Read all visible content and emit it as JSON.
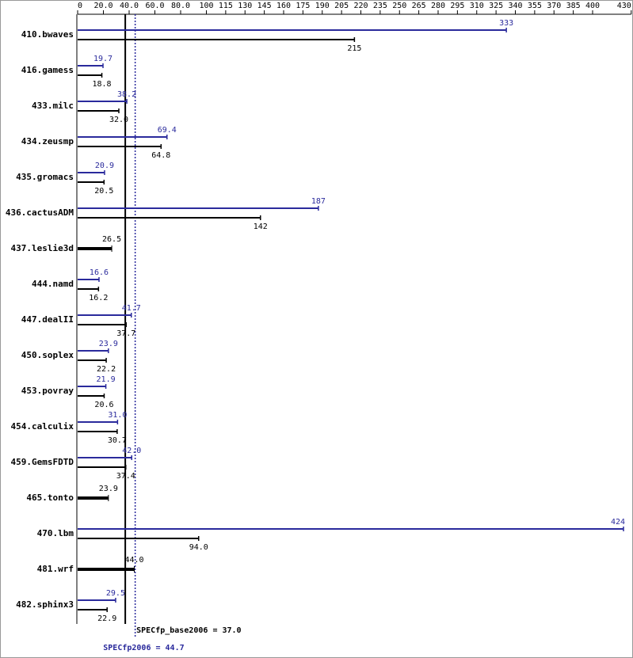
{
  "chart_data": {
    "type": "hbar-pair",
    "categories": [
      "410.bwaves",
      "416.gamess",
      "433.milc",
      "434.zeusmp",
      "435.gromacs",
      "436.cactusADM",
      "437.leslie3d",
      "444.namd",
      "447.dealII",
      "450.soplex",
      "453.povray",
      "454.calculix",
      "459.GemsFDTD",
      "465.tonto",
      "470.lbm",
      "481.wrf",
      "482.sphinx3"
    ],
    "series": [
      {
        "role": "peak",
        "color": "#2a2a9c",
        "values": [
          333,
          19.7,
          38.2,
          69.4,
          20.9,
          187,
          null,
          16.6,
          41.7,
          23.9,
          21.9,
          31.0,
          42.0,
          null,
          424,
          null,
          29.5
        ],
        "value_labels": [
          "333",
          "19.7",
          "38.2",
          "69.4",
          "20.9",
          "187",
          null,
          "16.6",
          "41.7",
          "23.9",
          "21.9",
          "31.0",
          "42.0",
          null,
          "424",
          null,
          "29.5"
        ]
      },
      {
        "role": "base",
        "color": "#000000",
        "values": [
          215,
          18.8,
          32.0,
          64.8,
          20.5,
          142,
          26.5,
          16.2,
          37.7,
          22.2,
          20.6,
          30.7,
          37.4,
          23.9,
          94.0,
          44.0,
          22.9
        ],
        "value_labels": [
          "215",
          "18.8",
          "32.0",
          "64.8",
          "20.5",
          "142",
          "26.5",
          "16.2",
          "37.7",
          "22.2",
          "20.6",
          "30.7",
          "37.4",
          "23.9",
          "94.0",
          "44.0",
          "22.9"
        ]
      }
    ],
    "xlim": [
      0,
      430
    ],
    "xticks": [
      0,
      {
        "value": 20,
        "label": "20.0"
      },
      {
        "value": 40,
        "label": "40.0"
      },
      {
        "value": 60,
        "label": "60.0"
      },
      {
        "value": 80,
        "label": "80.0"
      },
      100,
      115,
      130,
      145,
      160,
      175,
      190,
      205,
      220,
      235,
      250,
      265,
      280,
      295,
      310,
      325,
      340,
      355,
      370,
      385,
      400,
      430
    ],
    "reference_lines": [
      {
        "value": 37,
        "label": "SPECfp_base2006 = 37.0",
        "color": "#000000"
      },
      {
        "value": 44.7,
        "label": "SPECfp2006 = 44.7",
        "color": "#2a2a9c"
      }
    ]
  }
}
